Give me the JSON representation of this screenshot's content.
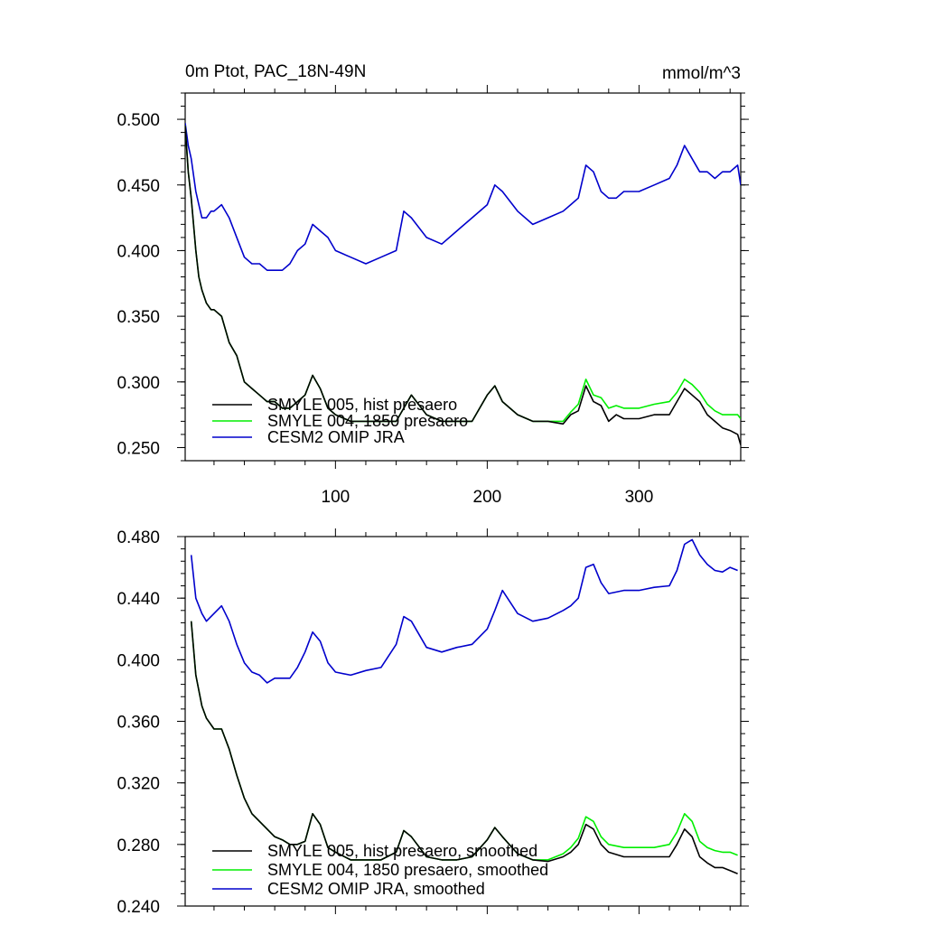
{
  "chart_data": [
    {
      "type": "line",
      "title_left": "0m Ptot, PAC_18N-49N",
      "title_right": "mmol/m^3",
      "xlabel": "",
      "ylabel": "",
      "xlim": [
        1,
        367
      ],
      "ylim": [
        0.24,
        0.52
      ],
      "yticks": [
        "0.250",
        "0.300",
        "0.350",
        "0.400",
        "0.450",
        "0.500"
      ],
      "xticks": [
        "100",
        "200",
        "300"
      ],
      "grid": false,
      "legend_position": "bottom-left",
      "series": [
        {
          "name": "SMYLE 005, hist presaero",
          "color": "#000000",
          "x": [
            1,
            3,
            5,
            8,
            10,
            12,
            15,
            18,
            20,
            25,
            30,
            35,
            40,
            45,
            50,
            55,
            60,
            65,
            70,
            75,
            80,
            85,
            90,
            95,
            100,
            110,
            120,
            130,
            140,
            150,
            160,
            170,
            180,
            190,
            200,
            205,
            210,
            220,
            230,
            240,
            250,
            255,
            260,
            265,
            270,
            275,
            280,
            285,
            290,
            300,
            310,
            320,
            325,
            330,
            335,
            340,
            345,
            350,
            355,
            360,
            365,
            367
          ],
          "values": [
            0.495,
            0.46,
            0.44,
            0.4,
            0.38,
            0.37,
            0.36,
            0.355,
            0.355,
            0.35,
            0.33,
            0.32,
            0.3,
            0.295,
            0.29,
            0.285,
            0.285,
            0.28,
            0.28,
            0.285,
            0.29,
            0.305,
            0.295,
            0.28,
            0.275,
            0.27,
            0.27,
            0.27,
            0.27,
            0.29,
            0.275,
            0.27,
            0.27,
            0.27,
            0.29,
            0.297,
            0.285,
            0.275,
            0.27,
            0.27,
            0.268,
            0.275,
            0.278,
            0.297,
            0.285,
            0.282,
            0.27,
            0.275,
            0.272,
            0.272,
            0.275,
            0.275,
            0.285,
            0.295,
            0.29,
            0.285,
            0.275,
            0.27,
            0.265,
            0.263,
            0.26,
            0.252
          ]
        },
        {
          "name": "SMYLE 004, 1850 presaero",
          "color": "#00ee00",
          "x": [
            1,
            3,
            5,
            8,
            10,
            12,
            15,
            18,
            20,
            25,
            30,
            35,
            40,
            45,
            50,
            55,
            60,
            65,
            70,
            75,
            80,
            85,
            90,
            95,
            100,
            110,
            120,
            130,
            140,
            150,
            160,
            170,
            180,
            190,
            200,
            205,
            210,
            220,
            230,
            240,
            250,
            255,
            260,
            265,
            270,
            275,
            280,
            285,
            290,
            300,
            310,
            320,
            325,
            330,
            335,
            340,
            345,
            350,
            355,
            360,
            365,
            367
          ],
          "values": [
            0.495,
            0.46,
            0.44,
            0.4,
            0.38,
            0.37,
            0.36,
            0.355,
            0.355,
            0.35,
            0.33,
            0.32,
            0.3,
            0.295,
            0.29,
            0.285,
            0.285,
            0.28,
            0.28,
            0.285,
            0.29,
            0.305,
            0.295,
            0.28,
            0.275,
            0.27,
            0.27,
            0.27,
            0.27,
            0.29,
            0.275,
            0.27,
            0.27,
            0.27,
            0.29,
            0.297,
            0.285,
            0.275,
            0.27,
            0.27,
            0.27,
            0.277,
            0.283,
            0.302,
            0.29,
            0.288,
            0.28,
            0.282,
            0.28,
            0.28,
            0.283,
            0.285,
            0.292,
            0.302,
            0.298,
            0.292,
            0.283,
            0.278,
            0.275,
            0.275,
            0.275,
            0.272
          ]
        },
        {
          "name": "CESM2 OMIP JRA",
          "color": "#0000cc",
          "x": [
            1,
            3,
            5,
            8,
            10,
            12,
            15,
            18,
            20,
            25,
            30,
            35,
            40,
            45,
            50,
            55,
            60,
            65,
            70,
            75,
            80,
            85,
            90,
            95,
            100,
            110,
            120,
            130,
            140,
            145,
            150,
            160,
            170,
            180,
            190,
            200,
            205,
            210,
            220,
            230,
            240,
            250,
            255,
            260,
            265,
            270,
            275,
            280,
            285,
            290,
            300,
            310,
            320,
            325,
            330,
            335,
            340,
            345,
            350,
            355,
            360,
            365,
            367
          ],
          "values": [
            0.497,
            0.48,
            0.47,
            0.445,
            0.435,
            0.425,
            0.425,
            0.43,
            0.43,
            0.435,
            0.425,
            0.41,
            0.395,
            0.39,
            0.39,
            0.385,
            0.385,
            0.385,
            0.39,
            0.4,
            0.405,
            0.42,
            0.415,
            0.41,
            0.4,
            0.395,
            0.39,
            0.395,
            0.4,
            0.43,
            0.425,
            0.41,
            0.405,
            0.415,
            0.425,
            0.435,
            0.45,
            0.445,
            0.43,
            0.42,
            0.425,
            0.43,
            0.435,
            0.44,
            0.465,
            0.46,
            0.445,
            0.44,
            0.44,
            0.445,
            0.445,
            0.45,
            0.455,
            0.465,
            0.48,
            0.47,
            0.46,
            0.46,
            0.455,
            0.46,
            0.46,
            0.465,
            0.45
          ]
        }
      ]
    },
    {
      "type": "line",
      "title_left": "",
      "title_right": "",
      "xlabel": "",
      "ylabel": "",
      "xlim": [
        1,
        367
      ],
      "ylim": [
        0.24,
        0.48
      ],
      "yticks": [
        "0.240",
        "0.280",
        "0.320",
        "0.360",
        "0.400",
        "0.440",
        "0.480"
      ],
      "xticks": [],
      "grid": false,
      "legend_position": "bottom-left",
      "series": [
        {
          "name": "SMYLE 005, hist presaero, smoothed",
          "color": "#000000",
          "x": [
            5,
            8,
            12,
            15,
            20,
            25,
            30,
            35,
            40,
            45,
            50,
            55,
            60,
            65,
            70,
            75,
            80,
            85,
            90,
            95,
            100,
            110,
            120,
            130,
            140,
            145,
            150,
            160,
            170,
            180,
            190,
            200,
            205,
            210,
            220,
            230,
            240,
            250,
            255,
            260,
            265,
            270,
            275,
            280,
            290,
            300,
            310,
            320,
            325,
            330,
            335,
            340,
            345,
            350,
            355,
            360,
            365
          ],
          "values": [
            0.425,
            0.39,
            0.37,
            0.362,
            0.355,
            0.355,
            0.342,
            0.325,
            0.31,
            0.3,
            0.295,
            0.29,
            0.285,
            0.283,
            0.28,
            0.28,
            0.282,
            0.3,
            0.293,
            0.278,
            0.275,
            0.27,
            0.27,
            0.27,
            0.275,
            0.289,
            0.285,
            0.272,
            0.27,
            0.27,
            0.272,
            0.283,
            0.291,
            0.285,
            0.274,
            0.27,
            0.269,
            0.272,
            0.275,
            0.28,
            0.293,
            0.29,
            0.28,
            0.275,
            0.272,
            0.272,
            0.272,
            0.272,
            0.28,
            0.29,
            0.285,
            0.272,
            0.268,
            0.265,
            0.265,
            0.263,
            0.261
          ]
        },
        {
          "name": "SMYLE 004, 1850 presaero, smoothed",
          "color": "#00ee00",
          "x": [
            5,
            8,
            12,
            15,
            20,
            25,
            30,
            35,
            40,
            45,
            50,
            55,
            60,
            65,
            70,
            75,
            80,
            85,
            90,
            95,
            100,
            110,
            120,
            130,
            140,
            145,
            150,
            160,
            170,
            180,
            190,
            200,
            205,
            210,
            220,
            230,
            240,
            250,
            255,
            260,
            265,
            270,
            275,
            280,
            290,
            300,
            310,
            320,
            325,
            330,
            335,
            340,
            345,
            350,
            355,
            360,
            365
          ],
          "values": [
            0.425,
            0.39,
            0.37,
            0.362,
            0.355,
            0.355,
            0.342,
            0.325,
            0.31,
            0.3,
            0.295,
            0.29,
            0.285,
            0.283,
            0.28,
            0.28,
            0.282,
            0.3,
            0.293,
            0.278,
            0.275,
            0.27,
            0.27,
            0.27,
            0.275,
            0.289,
            0.285,
            0.272,
            0.27,
            0.27,
            0.272,
            0.283,
            0.291,
            0.285,
            0.274,
            0.27,
            0.27,
            0.274,
            0.278,
            0.284,
            0.298,
            0.295,
            0.285,
            0.28,
            0.278,
            0.278,
            0.278,
            0.28,
            0.288,
            0.3,
            0.295,
            0.282,
            0.278,
            0.276,
            0.275,
            0.275,
            0.273
          ]
        },
        {
          "name": "CESM2 OMIP JRA, smoothed",
          "color": "#0000cc",
          "x": [
            5,
            8,
            12,
            15,
            20,
            25,
            30,
            35,
            40,
            45,
            50,
            55,
            60,
            65,
            70,
            75,
            80,
            85,
            90,
            95,
            100,
            110,
            120,
            130,
            140,
            145,
            150,
            160,
            170,
            180,
            190,
            200,
            205,
            210,
            220,
            230,
            240,
            250,
            255,
            260,
            265,
            270,
            275,
            280,
            290,
            300,
            310,
            320,
            325,
            330,
            335,
            340,
            345,
            350,
            355,
            360,
            365
          ],
          "values": [
            0.468,
            0.44,
            0.43,
            0.425,
            0.43,
            0.435,
            0.425,
            0.41,
            0.398,
            0.392,
            0.39,
            0.385,
            0.388,
            0.388,
            0.388,
            0.395,
            0.405,
            0.418,
            0.412,
            0.398,
            0.392,
            0.39,
            0.393,
            0.395,
            0.41,
            0.428,
            0.425,
            0.408,
            0.405,
            0.408,
            0.41,
            0.42,
            0.432,
            0.445,
            0.43,
            0.425,
            0.427,
            0.432,
            0.435,
            0.44,
            0.46,
            0.462,
            0.45,
            0.443,
            0.445,
            0.445,
            0.447,
            0.448,
            0.458,
            0.475,
            0.478,
            0.468,
            0.462,
            0.458,
            0.457,
            0.46,
            0.458
          ]
        }
      ]
    }
  ]
}
